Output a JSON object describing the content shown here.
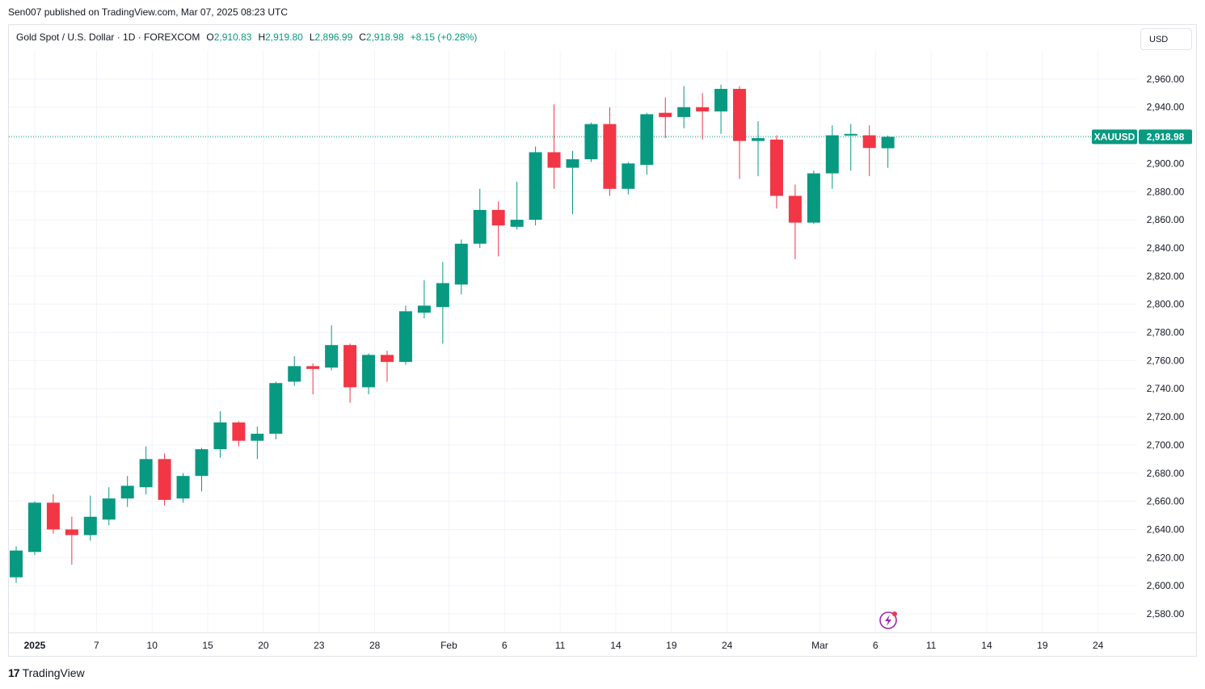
{
  "publisher": "Sen007 published on TradingView.com, Mar 07, 2025 08:23 UTC",
  "legend": {
    "symbol": "Gold Spot / U.S. Dollar · 1D · FOREXCOM",
    "o_label": "O",
    "o_value": "2,910.83",
    "h_label": "H",
    "h_value": "2,919.80",
    "l_label": "L",
    "l_value": "2,896.99",
    "c_label": "C",
    "c_value": "2,918.98",
    "change": "+8.15 (+0.28%)"
  },
  "currency_button": "USD",
  "footer": {
    "brand": "TradingView",
    "logo_mark": "17"
  },
  "colors": {
    "up": "#089981",
    "down": "#f23645",
    "grid": "#f0f3fa",
    "last_price": "#089981"
  },
  "chart_data": {
    "type": "candlestick",
    "symbol_tag": "XAUUSD",
    "last_price_label": "2,918.98",
    "last_price": 2918.98,
    "ylim": [
      2573,
      2970
    ],
    "y_ticks": [
      2580,
      2600,
      2620,
      2640,
      2660,
      2680,
      2700,
      2720,
      2740,
      2760,
      2780,
      2800,
      2820,
      2840,
      2860,
      2880,
      2900,
      2920,
      2940,
      2960
    ],
    "y_tick_labels": [
      "2,580.00",
      "2,600.00",
      "2,620.00",
      "2,640.00",
      "2,660.00",
      "2,680.00",
      "2,700.00",
      "2,720.00",
      "2,740.00",
      "2,760.00",
      "2,780.00",
      "2,800.00",
      "2,820.00",
      "2,840.00",
      "2,860.00",
      "2,880.00",
      "2,900.00",
      "2,920.00",
      "2,940.00",
      "2,960.00"
    ],
    "x_ticks": [
      {
        "label": "2025",
        "bar": 1,
        "bold": true
      },
      {
        "label": "7",
        "bar": 4.33
      },
      {
        "label": "10",
        "bar": 7.33
      },
      {
        "label": "15",
        "bar": 10.33
      },
      {
        "label": "20",
        "bar": 13.33
      },
      {
        "label": "23",
        "bar": 16.33
      },
      {
        "label": "28",
        "bar": 19.33
      },
      {
        "label": "Feb",
        "bar": 23.33
      },
      {
        "label": "6",
        "bar": 26.33
      },
      {
        "label": "11",
        "bar": 29.33
      },
      {
        "label": "14",
        "bar": 32.33
      },
      {
        "label": "19",
        "bar": 35.33
      },
      {
        "label": "24",
        "bar": 38.33
      },
      {
        "label": "Mar",
        "bar": 43.33
      },
      {
        "label": "6",
        "bar": 46.33
      },
      {
        "label": "11",
        "bar": 49.33
      },
      {
        "label": "14",
        "bar": 52.33
      },
      {
        "label": "19",
        "bar": 55.33
      },
      {
        "label": "24",
        "bar": 58.33
      }
    ],
    "candles": [
      {
        "o": 2606,
        "h": 2628,
        "l": 2602,
        "c": 2625
      },
      {
        "o": 2624,
        "h": 2660,
        "l": 2622,
        "c": 2659
      },
      {
        "o": 2659,
        "h": 2665,
        "l": 2637,
        "c": 2640
      },
      {
        "o": 2640,
        "h": 2649,
        "l": 2615,
        "c": 2636
      },
      {
        "o": 2636,
        "h": 2664,
        "l": 2632,
        "c": 2649
      },
      {
        "o": 2647,
        "h": 2670,
        "l": 2643,
        "c": 2662
      },
      {
        "o": 2662,
        "h": 2678,
        "l": 2656,
        "c": 2671
      },
      {
        "o": 2670,
        "h": 2699,
        "l": 2665,
        "c": 2690
      },
      {
        "o": 2690,
        "h": 2694,
        "l": 2657,
        "c": 2661
      },
      {
        "o": 2662,
        "h": 2680,
        "l": 2659,
        "c": 2678
      },
      {
        "o": 2678,
        "h": 2698,
        "l": 2667,
        "c": 2697
      },
      {
        "o": 2697,
        "h": 2724,
        "l": 2691,
        "c": 2716
      },
      {
        "o": 2716,
        "h": 2717,
        "l": 2699,
        "c": 2703
      },
      {
        "o": 2703,
        "h": 2713,
        "l": 2690,
        "c": 2708
      },
      {
        "o": 2708,
        "h": 2745,
        "l": 2704,
        "c": 2744
      },
      {
        "o": 2745,
        "h": 2763,
        "l": 2742,
        "c": 2756
      },
      {
        "o": 2756,
        "h": 2758,
        "l": 2736,
        "c": 2754
      },
      {
        "o": 2755,
        "h": 2785,
        "l": 2753,
        "c": 2771
      },
      {
        "o": 2771,
        "h": 2772,
        "l": 2730,
        "c": 2741
      },
      {
        "o": 2741,
        "h": 2765,
        "l": 2736,
        "c": 2764
      },
      {
        "o": 2764,
        "h": 2767,
        "l": 2745,
        "c": 2759
      },
      {
        "o": 2759,
        "h": 2799,
        "l": 2757,
        "c": 2795
      },
      {
        "o": 2794,
        "h": 2817,
        "l": 2790,
        "c": 2799
      },
      {
        "o": 2798,
        "h": 2830,
        "l": 2772,
        "c": 2815
      },
      {
        "o": 2814,
        "h": 2846,
        "l": 2807,
        "c": 2843
      },
      {
        "o": 2843,
        "h": 2882,
        "l": 2840,
        "c": 2867
      },
      {
        "o": 2867,
        "h": 2873,
        "l": 2834,
        "c": 2856
      },
      {
        "o": 2855,
        "h": 2887,
        "l": 2853,
        "c": 2860
      },
      {
        "o": 2860,
        "h": 2912,
        "l": 2856,
        "c": 2908
      },
      {
        "o": 2908,
        "h": 2942,
        "l": 2882,
        "c": 2897
      },
      {
        "o": 2897,
        "h": 2909,
        "l": 2864,
        "c": 2903
      },
      {
        "o": 2903,
        "h": 2929,
        "l": 2901,
        "c": 2928
      },
      {
        "o": 2928,
        "h": 2940,
        "l": 2877,
        "c": 2882
      },
      {
        "o": 2882,
        "h": 2901,
        "l": 2878,
        "c": 2900
      },
      {
        "o": 2899,
        "h": 2936,
        "l": 2892,
        "c": 2935
      },
      {
        "o": 2936,
        "h": 2947,
        "l": 2918,
        "c": 2933
      },
      {
        "o": 2933,
        "h": 2955,
        "l": 2925,
        "c": 2940
      },
      {
        "o": 2940,
        "h": 2950,
        "l": 2917,
        "c": 2937
      },
      {
        "o": 2937,
        "h": 2956,
        "l": 2921,
        "c": 2953
      },
      {
        "o": 2953,
        "h": 2955,
        "l": 2889,
        "c": 2916
      },
      {
        "o": 2916,
        "h": 2930,
        "l": 2891,
        "c": 2918
      },
      {
        "o": 2917,
        "h": 2920,
        "l": 2868,
        "c": 2877
      },
      {
        "o": 2877,
        "h": 2885,
        "l": 2832,
        "c": 2858
      },
      {
        "o": 2858,
        "h": 2895,
        "l": 2857,
        "c": 2893
      },
      {
        "o": 2893,
        "h": 2927,
        "l": 2882,
        "c": 2920
      },
      {
        "o": 2920,
        "h": 2928,
        "l": 2895,
        "c": 2921
      },
      {
        "o": 2920,
        "h": 2927,
        "l": 2891,
        "c": 2911
      },
      {
        "o": 2910.83,
        "h": 2919.8,
        "l": 2896.99,
        "c": 2918.98
      }
    ]
  }
}
